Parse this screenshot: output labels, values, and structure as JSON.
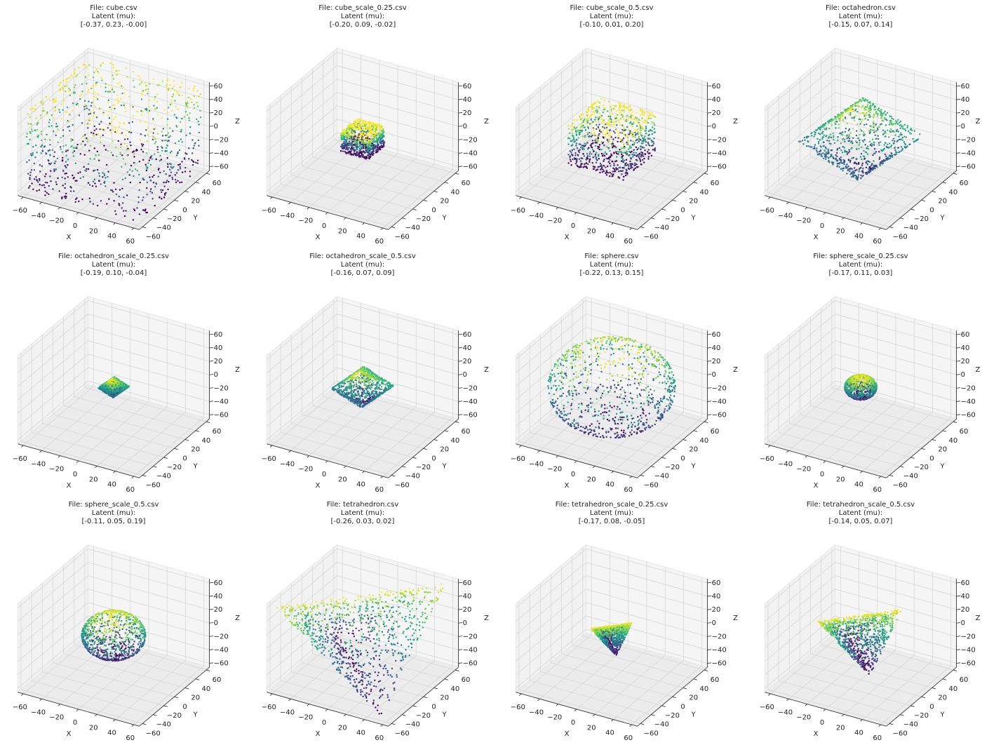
{
  "chart_data": [
    {
      "type": "scatter3d",
      "title": [
        "File: cube.csv",
        "Latent (mu):",
        "[-0.37, 0.23, -0.00]"
      ],
      "shape": "cube",
      "extent": 60,
      "colormap": "viridis",
      "xlabel": "X",
      "ylabel": "Y",
      "zlabel": "Z",
      "xlim": [
        -66,
        66
      ],
      "ylim": [
        -66,
        66
      ],
      "zlim": [
        -66,
        66
      ],
      "xticks": [
        {
          "value": -60,
          "label": "−60"
        },
        {
          "value": -40,
          "label": "−40"
        },
        {
          "value": -20,
          "label": "−20"
        },
        0,
        20,
        40,
        60
      ],
      "yticks": [
        {
          "value": -60,
          "label": "−60"
        },
        {
          "value": -40,
          "label": "−40"
        },
        {
          "value": -20,
          "label": "−20"
        },
        0,
        20,
        40,
        60
      ],
      "zticks": [
        {
          "value": -60,
          "label": "−60"
        },
        {
          "value": -40,
          "label": "−40"
        },
        {
          "value": -20,
          "label": "−20"
        },
        0,
        20,
        40,
        60
      ]
    },
    {
      "type": "scatter3d",
      "title": [
        "File: cube_scale_0.25.csv",
        "Latent (mu):",
        "[-0.20, 0.09, -0.02]"
      ],
      "shape": "cube",
      "extent": 15,
      "colormap": "viridis",
      "xlabel": "X",
      "ylabel": "Y",
      "zlabel": "Z",
      "xlim": [
        -66,
        66
      ],
      "ylim": [
        -66,
        66
      ],
      "zlim": [
        -66,
        66
      ],
      "xticks": [
        {
          "value": -60,
          "label": "−60"
        },
        {
          "value": -40,
          "label": "−40"
        },
        {
          "value": -20,
          "label": "−20"
        },
        0,
        20,
        40,
        60
      ],
      "yticks": [
        {
          "value": -60,
          "label": "−60"
        },
        {
          "value": -40,
          "label": "−40"
        },
        {
          "value": -20,
          "label": "−20"
        },
        0,
        20,
        40,
        60
      ],
      "zticks": [
        {
          "value": -60,
          "label": "−60"
        },
        {
          "value": -40,
          "label": "−40"
        },
        {
          "value": -20,
          "label": "−20"
        },
        0,
        20,
        40,
        60
      ]
    },
    {
      "type": "scatter3d",
      "title": [
        "File: cube_scale_0.5.csv",
        "Latent (mu):",
        "[-0.10, 0.01, 0.20]"
      ],
      "shape": "cube",
      "extent": 30,
      "colormap": "viridis",
      "xlabel": "X",
      "ylabel": "Y",
      "zlabel": "Z",
      "xlim": [
        -66,
        66
      ],
      "ylim": [
        -66,
        66
      ],
      "zlim": [
        -66,
        66
      ],
      "xticks": [
        {
          "value": -60,
          "label": "−60"
        },
        {
          "value": -40,
          "label": "−40"
        },
        {
          "value": -20,
          "label": "−20"
        },
        0,
        20,
        40,
        60
      ],
      "yticks": [
        {
          "value": -60,
          "label": "−60"
        },
        {
          "value": -40,
          "label": "−40"
        },
        {
          "value": -20,
          "label": "−20"
        },
        0,
        20,
        40,
        60
      ],
      "zticks": [
        {
          "value": -60,
          "label": "−60"
        },
        {
          "value": -40,
          "label": "−40"
        },
        {
          "value": -20,
          "label": "−20"
        },
        0,
        20,
        40,
        60
      ]
    },
    {
      "type": "scatter3d",
      "title": [
        "File: octahedron.csv",
        "Latent (mu):",
        "[-0.15, 0.07, 0.14]"
      ],
      "shape": "octahedron",
      "extent": 60,
      "colormap": "viridis",
      "xlabel": "X",
      "ylabel": "Y",
      "zlabel": "Z",
      "xlim": [
        -66,
        66
      ],
      "ylim": [
        -66,
        66
      ],
      "zlim": [
        -66,
        66
      ],
      "xticks": [
        {
          "value": -60,
          "label": "−60"
        },
        {
          "value": -40,
          "label": "−40"
        },
        {
          "value": -20,
          "label": "−20"
        },
        0,
        20,
        40,
        60
      ],
      "yticks": [
        {
          "value": -60,
          "label": "−60"
        },
        {
          "value": -40,
          "label": "−40"
        },
        {
          "value": -20,
          "label": "−20"
        },
        0,
        20,
        40,
        60
      ],
      "zticks": [
        {
          "value": -60,
          "label": "−60"
        },
        {
          "value": -40,
          "label": "−40"
        },
        {
          "value": -20,
          "label": "−20"
        },
        0,
        20,
        40,
        60
      ]
    },
    {
      "type": "scatter3d",
      "title": [
        "File: octahedron_scale_0.25.csv",
        "Latent (mu):",
        "[-0.19, 0.10, -0.04]"
      ],
      "shape": "octahedron",
      "extent": 15,
      "colormap": "viridis",
      "xlabel": "X",
      "ylabel": "Y",
      "zlabel": "Z",
      "xlim": [
        -66,
        66
      ],
      "ylim": [
        -66,
        66
      ],
      "zlim": [
        -66,
        66
      ],
      "xticks": [
        {
          "value": -60,
          "label": "−60"
        },
        {
          "value": -40,
          "label": "−40"
        },
        {
          "value": -20,
          "label": "−20"
        },
        0,
        20,
        40,
        60
      ],
      "yticks": [
        {
          "value": -60,
          "label": "−60"
        },
        {
          "value": -40,
          "label": "−40"
        },
        {
          "value": -20,
          "label": "−20"
        },
        0,
        20,
        40,
        60
      ],
      "zticks": [
        {
          "value": -60,
          "label": "−60"
        },
        {
          "value": -40,
          "label": "−40"
        },
        {
          "value": -20,
          "label": "−20"
        },
        0,
        20,
        40,
        60
      ]
    },
    {
      "type": "scatter3d",
      "title": [
        "File: octahedron_scale_0.5.csv",
        "Latent (mu):",
        "[-0.16, 0.07, 0.09]"
      ],
      "shape": "octahedron",
      "extent": 30,
      "colormap": "viridis",
      "xlabel": "X",
      "ylabel": "Y",
      "zlabel": "Z",
      "xlim": [
        -66,
        66
      ],
      "ylim": [
        -66,
        66
      ],
      "zlim": [
        -66,
        66
      ],
      "xticks": [
        {
          "value": -60,
          "label": "−60"
        },
        {
          "value": -40,
          "label": "−40"
        },
        {
          "value": -20,
          "label": "−20"
        },
        0,
        20,
        40,
        60
      ],
      "yticks": [
        {
          "value": -60,
          "label": "−60"
        },
        {
          "value": -40,
          "label": "−40"
        },
        {
          "value": -20,
          "label": "−20"
        },
        0,
        20,
        40,
        60
      ],
      "zticks": [
        {
          "value": -60,
          "label": "−60"
        },
        {
          "value": -40,
          "label": "−40"
        },
        {
          "value": -20,
          "label": "−20"
        },
        0,
        20,
        40,
        60
      ]
    },
    {
      "type": "scatter3d",
      "title": [
        "File: sphere.csv",
        "Latent (mu):",
        "[-0.22, 0.13, 0.15]"
      ],
      "shape": "sphere",
      "extent": 60,
      "colormap": "viridis",
      "xlabel": "X",
      "ylabel": "Y",
      "zlabel": "Z",
      "xlim": [
        -66,
        66
      ],
      "ylim": [
        -66,
        66
      ],
      "zlim": [
        -66,
        66
      ],
      "xticks": [
        {
          "value": -60,
          "label": "−60"
        },
        {
          "value": -40,
          "label": "−40"
        },
        {
          "value": -20,
          "label": "−20"
        },
        0,
        20,
        40,
        60
      ],
      "yticks": [
        {
          "value": -60,
          "label": "−60"
        },
        {
          "value": -40,
          "label": "−40"
        },
        {
          "value": -20,
          "label": "−20"
        },
        0,
        20,
        40,
        60
      ],
      "zticks": [
        {
          "value": -60,
          "label": "−60"
        },
        {
          "value": -40,
          "label": "−40"
        },
        {
          "value": -20,
          "label": "−20"
        },
        0,
        20,
        40,
        60
      ]
    },
    {
      "type": "scatter3d",
      "title": [
        "File: sphere_scale_0.25.csv",
        "Latent (mu):",
        "[-0.17, 0.11, 0.03]"
      ],
      "shape": "sphere",
      "extent": 15,
      "colormap": "viridis",
      "xlabel": "X",
      "ylabel": "Y",
      "zlabel": "Z",
      "xlim": [
        -66,
        66
      ],
      "ylim": [
        -66,
        66
      ],
      "zlim": [
        -66,
        66
      ],
      "xticks": [
        {
          "value": -60,
          "label": "−60"
        },
        {
          "value": -40,
          "label": "−40"
        },
        {
          "value": -20,
          "label": "−20"
        },
        0,
        20,
        40,
        60
      ],
      "yticks": [
        {
          "value": -60,
          "label": "−60"
        },
        {
          "value": -40,
          "label": "−40"
        },
        {
          "value": -20,
          "label": "−20"
        },
        0,
        20,
        40,
        60
      ],
      "zticks": [
        {
          "value": -60,
          "label": "−60"
        },
        {
          "value": -40,
          "label": "−40"
        },
        {
          "value": -20,
          "label": "−20"
        },
        0,
        20,
        40,
        60
      ]
    },
    {
      "type": "scatter3d",
      "title": [
        "File: sphere_scale_0.5.csv",
        "Latent (mu):",
        "[-0.11, 0.05, 0.19]"
      ],
      "shape": "sphere",
      "extent": 30,
      "colormap": "viridis",
      "xlabel": "X",
      "ylabel": "Y",
      "zlabel": "Z",
      "xlim": [
        -66,
        66
      ],
      "ylim": [
        -66,
        66
      ],
      "zlim": [
        -66,
        66
      ],
      "xticks": [
        {
          "value": -60,
          "label": "−60"
        },
        {
          "value": -40,
          "label": "−40"
        },
        {
          "value": -20,
          "label": "−20"
        },
        0,
        20,
        40,
        60
      ],
      "yticks": [
        {
          "value": -60,
          "label": "−60"
        },
        {
          "value": -40,
          "label": "−40"
        },
        {
          "value": -20,
          "label": "−20"
        },
        0,
        20,
        40,
        60
      ],
      "zticks": [
        {
          "value": -60,
          "label": "−60"
        },
        {
          "value": -40,
          "label": "−40"
        },
        {
          "value": -20,
          "label": "−20"
        },
        0,
        20,
        40,
        60
      ]
    },
    {
      "type": "scatter3d",
      "title": [
        "File: tetrahedron.csv",
        "Latent (mu):",
        "[-0.26, 0.03, 0.02]"
      ],
      "shape": "tetrahedron",
      "extent": 60,
      "colormap": "viridis",
      "xlabel": "X",
      "ylabel": "Y",
      "zlabel": "Z",
      "xlim": [
        -66,
        66
      ],
      "ylim": [
        -66,
        66
      ],
      "zlim": [
        -66,
        66
      ],
      "xticks": [
        {
          "value": -60,
          "label": "−60"
        },
        {
          "value": -40,
          "label": "−40"
        },
        {
          "value": -20,
          "label": "−20"
        },
        0,
        20,
        40,
        60
      ],
      "yticks": [
        {
          "value": -60,
          "label": "−60"
        },
        {
          "value": -40,
          "label": "−40"
        },
        {
          "value": -20,
          "label": "−20"
        },
        0,
        20,
        40,
        60
      ],
      "zticks": [
        {
          "value": -60,
          "label": "−60"
        },
        {
          "value": -40,
          "label": "−40"
        },
        {
          "value": -20,
          "label": "−20"
        },
        0,
        20,
        40,
        60
      ]
    },
    {
      "type": "scatter3d",
      "title": [
        "File: tetrahedron_scale_0.25.csv",
        "Latent (mu):",
        "[-0.17, 0.08, -0.05]"
      ],
      "shape": "tetrahedron",
      "extent": 15,
      "colormap": "viridis",
      "xlabel": "X",
      "ylabel": "Y",
      "zlabel": "Z",
      "xlim": [
        -66,
        66
      ],
      "ylim": [
        -66,
        66
      ],
      "zlim": [
        -66,
        66
      ],
      "xticks": [
        {
          "value": -60,
          "label": "−60"
        },
        {
          "value": -40,
          "label": "−40"
        },
        {
          "value": -20,
          "label": "−20"
        },
        0,
        20,
        40,
        60
      ],
      "yticks": [
        {
          "value": -60,
          "label": "−60"
        },
        {
          "value": -40,
          "label": "−40"
        },
        {
          "value": -20,
          "label": "−20"
        },
        0,
        20,
        40,
        60
      ],
      "zticks": [
        {
          "value": -60,
          "label": "−60"
        },
        {
          "value": -40,
          "label": "−40"
        },
        {
          "value": -20,
          "label": "−20"
        },
        0,
        20,
        40,
        60
      ]
    },
    {
      "type": "scatter3d",
      "title": [
        "File: tetrahedron_scale_0.5.csv",
        "Latent (mu):",
        "[-0.14, 0.05, 0.07]"
      ],
      "shape": "tetrahedron",
      "extent": 30,
      "colormap": "viridis",
      "xlabel": "X",
      "ylabel": "Y",
      "zlabel": "Z",
      "xlim": [
        -66,
        66
      ],
      "ylim": [
        -66,
        66
      ],
      "zlim": [
        -66,
        66
      ],
      "xticks": [
        {
          "value": -60,
          "label": "−60"
        },
        {
          "value": -40,
          "label": "−40"
        },
        {
          "value": -20,
          "label": "−20"
        },
        0,
        20,
        40,
        60
      ],
      "yticks": [
        {
          "value": -60,
          "label": "−60"
        },
        {
          "value": -40,
          "label": "−40"
        },
        {
          "value": -20,
          "label": "−20"
        },
        0,
        20,
        40,
        60
      ],
      "zticks": [
        {
          "value": -60,
          "label": "−60"
        },
        {
          "value": -40,
          "label": "−40"
        },
        {
          "value": -20,
          "label": "−20"
        },
        0,
        20,
        40,
        60
      ]
    }
  ]
}
